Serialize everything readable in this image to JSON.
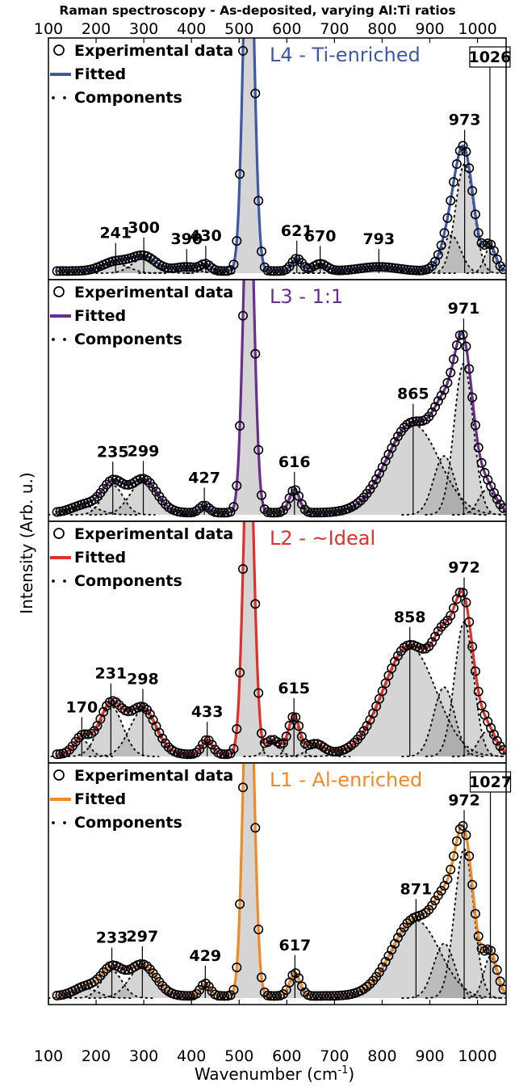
{
  "chart_data": {
    "type": "line",
    "title": "Raman spectroscopy  - As-deposited, varying Al:Ti ratios",
    "xlabel": "Wavenumber (cm",
    "xlabel_sup": "-1",
    "xlabel_close": ")",
    "ylabel": "Intensity (Arb. u.)",
    "xlim": [
      100,
      1060
    ],
    "xticks": [
      "100",
      "200",
      "300",
      "400",
      "500",
      "600",
      "700",
      "800",
      "900",
      "1000"
    ],
    "legend_labels": {
      "exp": "Experimental data",
      "fit": "Fitted",
      "comp": "Components"
    },
    "panels": [
      {
        "name": "L4 - Ti-enriched",
        "color": "#3d59a8",
        "peaks": [
          {
            "label": "241",
            "x": 241,
            "boxed": false
          },
          {
            "label": "300",
            "x": 300,
            "boxed": false
          },
          {
            "label": "390",
            "x": 390,
            "boxed": false
          },
          {
            "label": "430",
            "x": 430,
            "boxed": false
          },
          {
            "label": "621",
            "x": 621,
            "boxed": false
          },
          {
            "label": "670",
            "x": 670,
            "boxed": false
          },
          {
            "label": "793",
            "x": 793,
            "boxed": false
          },
          {
            "label": "973",
            "x": 973,
            "boxed": false
          },
          {
            "label": "1026",
            "x": 1026,
            "boxed": true
          }
        ],
        "components": [
          {
            "c": 241,
            "w": 28,
            "h": 0.045
          },
          {
            "c": 300,
            "w": 25,
            "h": 0.07
          },
          {
            "c": 390,
            "w": 25,
            "h": 0.02
          },
          {
            "c": 430,
            "w": 10,
            "h": 0.03
          },
          {
            "c": 520,
            "w": 11,
            "h": 1.9
          },
          {
            "c": 621,
            "w": 11,
            "h": 0.06
          },
          {
            "c": 670,
            "w": 14,
            "h": 0.035
          },
          {
            "c": 793,
            "w": 40,
            "h": 0.02
          },
          {
            "c": 945,
            "w": 20,
            "h": 0.18
          },
          {
            "c": 973,
            "w": 19,
            "h": 0.52
          },
          {
            "c": 1026,
            "w": 12,
            "h": 0.12
          }
        ]
      },
      {
        "name": "L3 - 1:1",
        "color": "#6a2f8c",
        "peaks": [
          {
            "label": "235",
            "x": 235,
            "boxed": false
          },
          {
            "label": "299",
            "x": 299,
            "boxed": false
          },
          {
            "label": "427",
            "x": 427,
            "boxed": false
          },
          {
            "label": "616",
            "x": 616,
            "boxed": false
          },
          {
            "label": "865",
            "x": 865,
            "boxed": false
          },
          {
            "label": "971",
            "x": 971,
            "boxed": false
          }
        ],
        "components": [
          {
            "c": 180,
            "w": 28,
            "h": 0.04
          },
          {
            "c": 235,
            "w": 22,
            "h": 0.14
          },
          {
            "c": 299,
            "w": 28,
            "h": 0.16
          },
          {
            "c": 427,
            "w": 10,
            "h": 0.035
          },
          {
            "c": 520,
            "w": 11,
            "h": 1.7
          },
          {
            "c": 616,
            "w": 11,
            "h": 0.11
          },
          {
            "c": 865,
            "w": 55,
            "h": 0.43
          },
          {
            "c": 930,
            "w": 22,
            "h": 0.28
          },
          {
            "c": 971,
            "w": 20,
            "h": 0.72
          },
          {
            "c": 1020,
            "w": 18,
            "h": 0.12
          }
        ]
      },
      {
        "name": "L2 - ~Ideal",
        "color": "#e0302a",
        "peaks": [
          {
            "label": "170",
            "x": 170,
            "boxed": false
          },
          {
            "label": "231",
            "x": 231,
            "boxed": false
          },
          {
            "label": "298",
            "x": 298,
            "boxed": false
          },
          {
            "label": "433",
            "x": 433,
            "boxed": false
          },
          {
            "label": "615",
            "x": 615,
            "boxed": false
          },
          {
            "label": "858",
            "x": 858,
            "boxed": false
          },
          {
            "label": "972",
            "x": 972,
            "boxed": false
          }
        ],
        "components": [
          {
            "c": 170,
            "w": 16,
            "h": 0.08
          },
          {
            "c": 231,
            "w": 25,
            "h": 0.24
          },
          {
            "c": 298,
            "w": 28,
            "h": 0.22
          },
          {
            "c": 433,
            "w": 11,
            "h": 0.07
          },
          {
            "c": 520,
            "w": 11,
            "h": 1.6
          },
          {
            "c": 570,
            "w": 15,
            "h": 0.07
          },
          {
            "c": 615,
            "w": 12,
            "h": 0.18
          },
          {
            "c": 660,
            "w": 18,
            "h": 0.05
          },
          {
            "c": 858,
            "w": 55,
            "h": 0.52
          },
          {
            "c": 930,
            "w": 22,
            "h": 0.33
          },
          {
            "c": 972,
            "w": 20,
            "h": 0.64
          },
          {
            "c": 1020,
            "w": 18,
            "h": 0.12
          }
        ]
      },
      {
        "name": "L1 - Al-enriched",
        "color": "#f08a24",
        "peaks": [
          {
            "label": "233",
            "x": 233,
            "boxed": false
          },
          {
            "label": "297",
            "x": 297,
            "boxed": false
          },
          {
            "label": "429",
            "x": 429,
            "boxed": false
          },
          {
            "label": "617",
            "x": 617,
            "boxed": false
          },
          {
            "label": "871",
            "x": 871,
            "boxed": false
          },
          {
            "label": "972",
            "x": 972,
            "boxed": false
          },
          {
            "label": "1027",
            "x": 1027,
            "boxed": true
          }
        ],
        "components": [
          {
            "c": 180,
            "w": 25,
            "h": 0.045
          },
          {
            "c": 233,
            "w": 22,
            "h": 0.13
          },
          {
            "c": 297,
            "w": 28,
            "h": 0.15
          },
          {
            "c": 429,
            "w": 10,
            "h": 0.06
          },
          {
            "c": 520,
            "w": 11,
            "h": 1.8
          },
          {
            "c": 617,
            "w": 11,
            "h": 0.11
          },
          {
            "c": 871,
            "w": 50,
            "h": 0.37
          },
          {
            "c": 930,
            "w": 22,
            "h": 0.26
          },
          {
            "c": 972,
            "w": 20,
            "h": 0.71
          },
          {
            "c": 1027,
            "w": 14,
            "h": 0.2
          }
        ]
      }
    ]
  }
}
